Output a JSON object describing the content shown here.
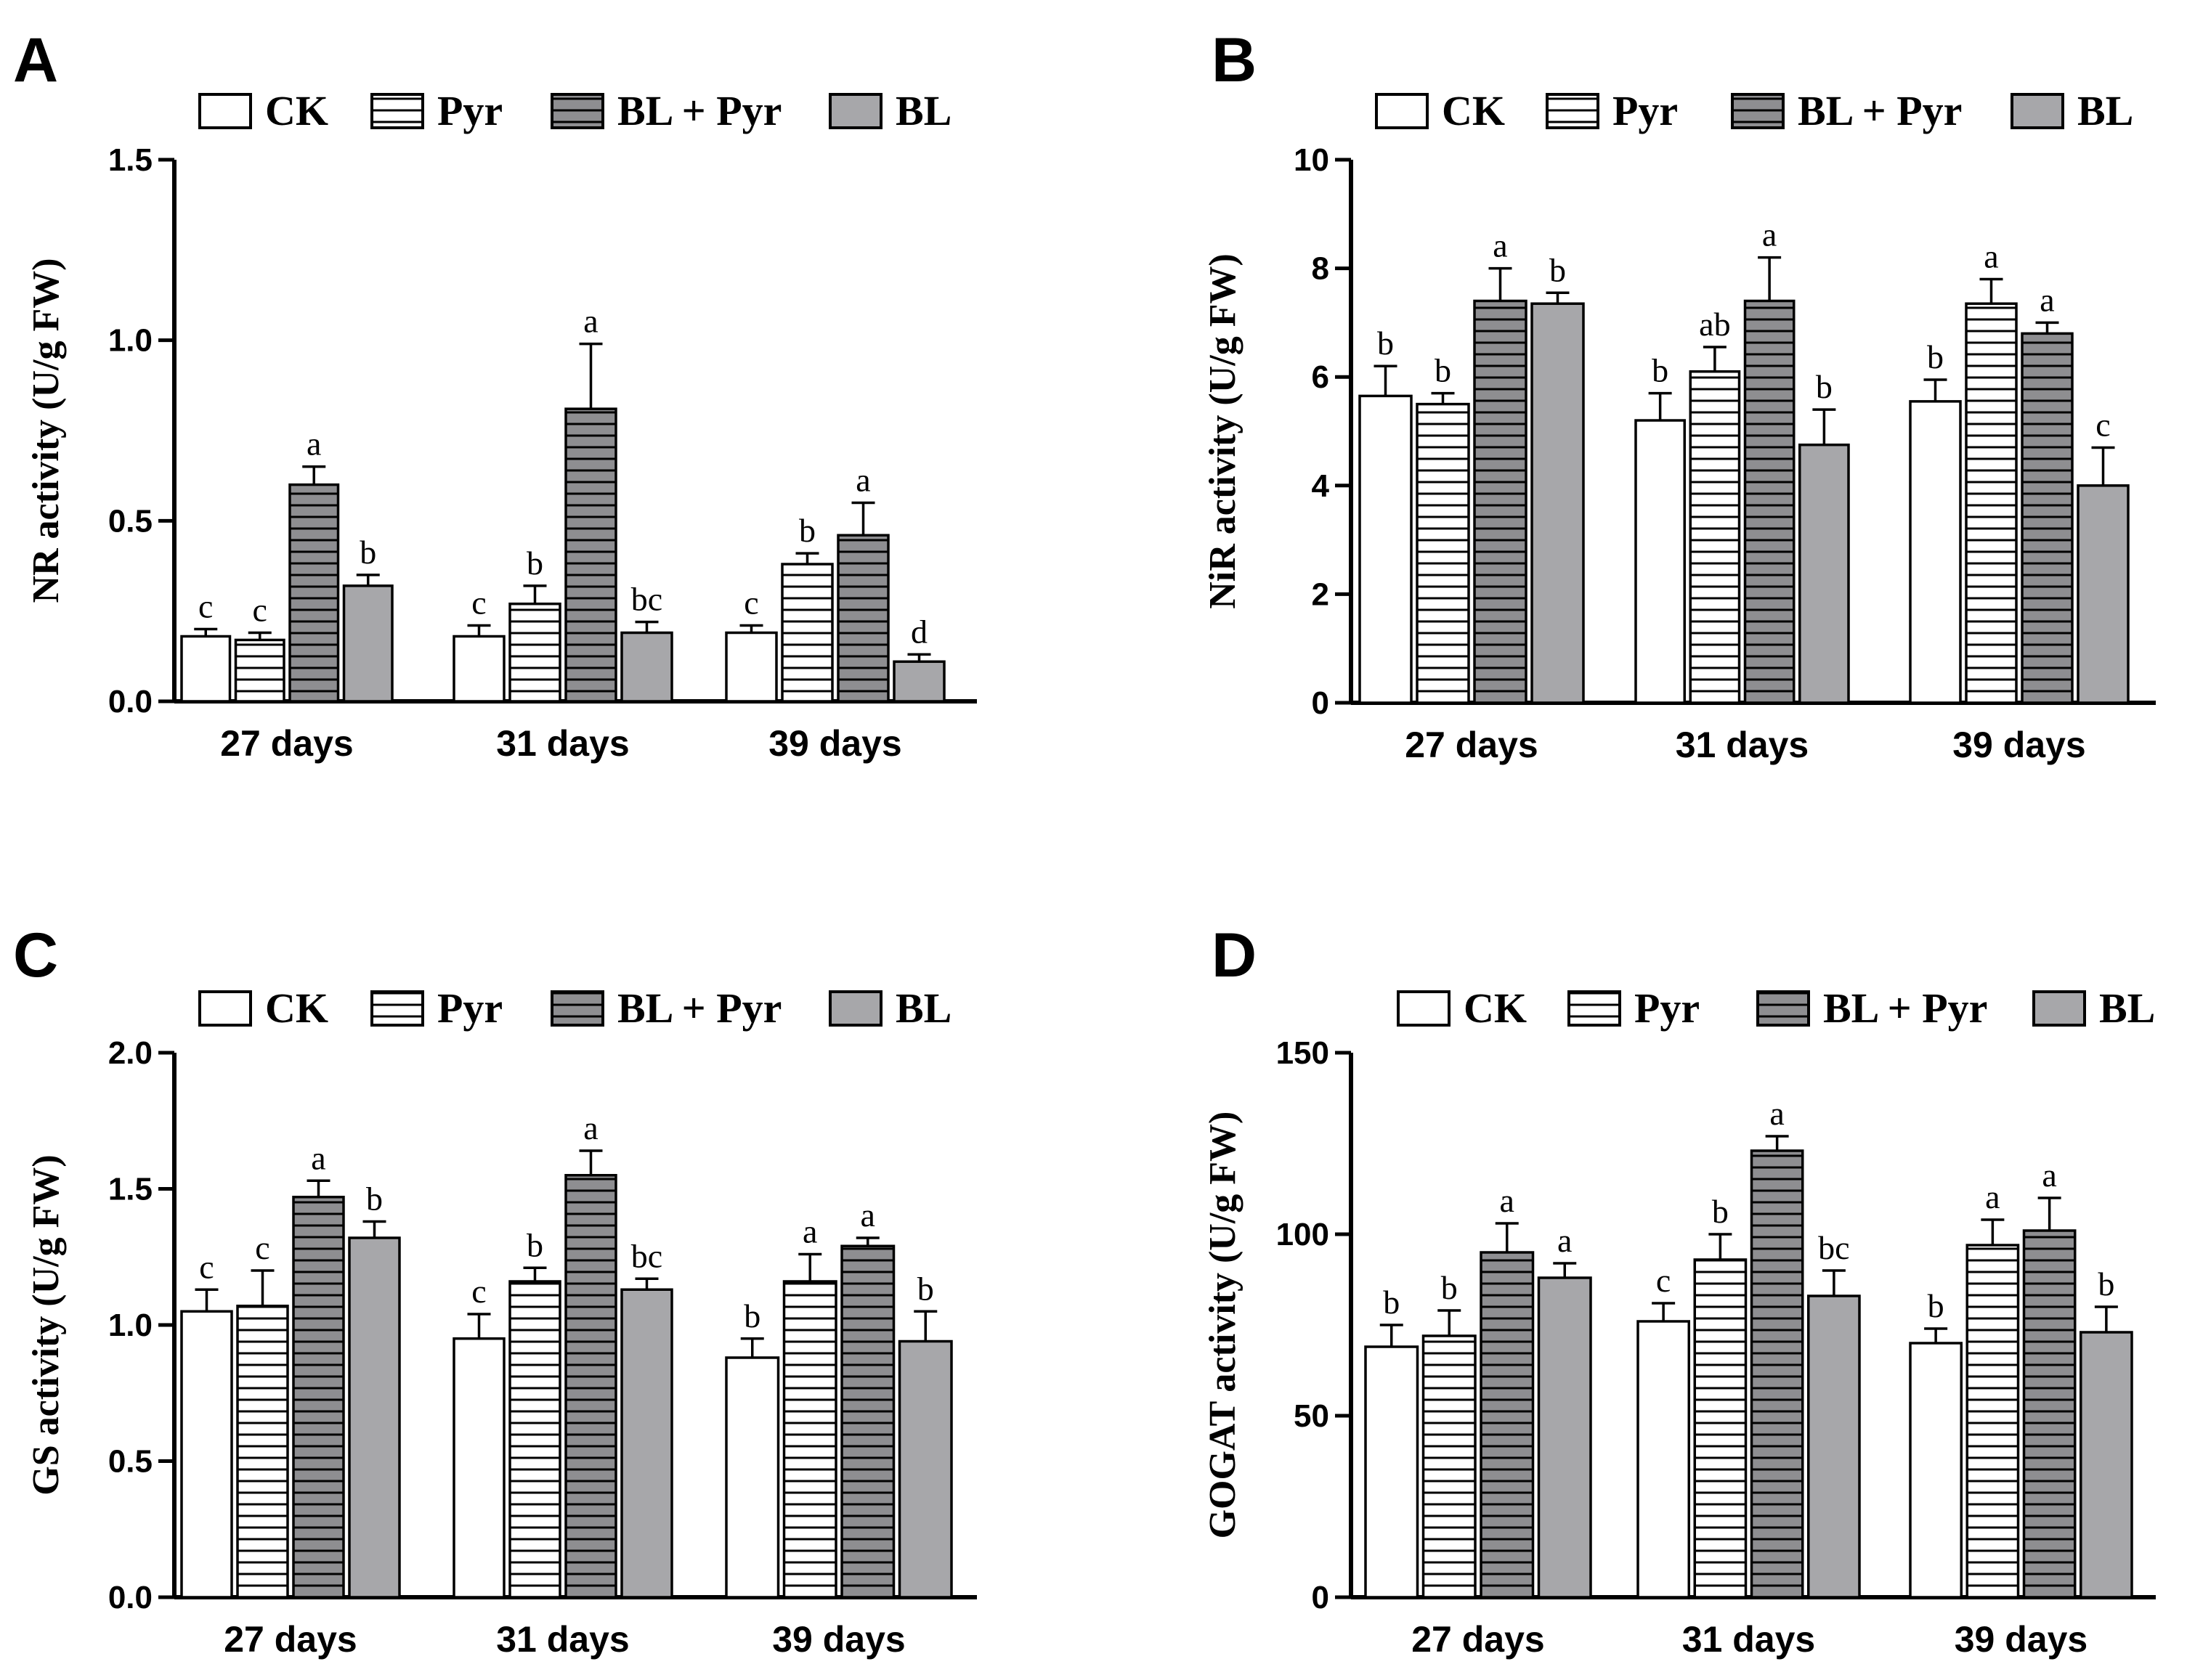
{
  "legend": [
    {
      "name": "CK",
      "pattern": "white"
    },
    {
      "name": "Pyr",
      "pattern": "hatch-white"
    },
    {
      "name": "BL + Pyr",
      "pattern": "hatch-gray"
    },
    {
      "name": "BL",
      "pattern": "gray"
    }
  ],
  "colors": {
    "gray_fill": "#a7a7aa",
    "hatch_gray_fill": "#8e8e91",
    "white_fill": "#ffffff",
    "stroke": "#000000"
  },
  "chart_data": [
    {
      "panel": "A",
      "type": "bar",
      "ylabel": "NR activity (U/g FW)",
      "ylim": [
        0,
        1.5
      ],
      "yticks": [
        "0.0",
        "0.5",
        "1.0",
        "1.5"
      ],
      "categories": [
        "27 days",
        "31 days",
        "39 days"
      ],
      "series": [
        {
          "name": "CK",
          "values": [
            0.18,
            0.18,
            0.19
          ],
          "errors": [
            0.02,
            0.03,
            0.02
          ],
          "letters": [
            "c",
            "c",
            "c"
          ]
        },
        {
          "name": "Pyr",
          "values": [
            0.17,
            0.27,
            0.38
          ],
          "errors": [
            0.02,
            0.05,
            0.03
          ],
          "letters": [
            "c",
            "b",
            "b"
          ]
        },
        {
          "name": "BL + Pyr",
          "values": [
            0.6,
            0.81,
            0.46
          ],
          "errors": [
            0.05,
            0.18,
            0.09
          ],
          "letters": [
            "a",
            "a",
            "a"
          ]
        },
        {
          "name": "BL",
          "values": [
            0.32,
            0.19,
            0.11
          ],
          "errors": [
            0.03,
            0.03,
            0.02
          ],
          "letters": [
            "b",
            "bc",
            "d"
          ]
        }
      ]
    },
    {
      "panel": "B",
      "type": "bar",
      "ylabel": "NiR activity (U/g FW)",
      "ylim": [
        0,
        10
      ],
      "yticks": [
        "0",
        "2",
        "4",
        "6",
        "8",
        "10"
      ],
      "categories": [
        "27 days",
        "31 days",
        "39 days"
      ],
      "series": [
        {
          "name": "CK",
          "values": [
            5.65,
            5.2,
            5.55
          ],
          "errors": [
            0.55,
            0.5,
            0.4
          ],
          "letters": [
            "b",
            "b",
            "b"
          ]
        },
        {
          "name": "Pyr",
          "values": [
            5.5,
            6.1,
            7.35
          ],
          "errors": [
            0.2,
            0.45,
            0.45
          ],
          "letters": [
            "b",
            "ab",
            "a"
          ]
        },
        {
          "name": "BL + Pyr",
          "values": [
            7.4,
            7.4,
            6.8
          ],
          "errors": [
            0.6,
            0.8,
            0.2
          ],
          "letters": [
            "a",
            "a",
            "a"
          ]
        },
        {
          "name": "BL",
          "values": [
            7.35,
            4.75,
            4.0
          ],
          "errors": [
            0.2,
            0.65,
            0.7
          ],
          "letters": [
            "b",
            "b",
            "c"
          ]
        }
      ]
    },
    {
      "panel": "C",
      "type": "bar",
      "ylabel": "GS activity (U/g FW)",
      "ylim": [
        0,
        2.0
      ],
      "yticks": [
        "0.0",
        "0.5",
        "1.0",
        "1.5",
        "2.0"
      ],
      "categories": [
        "27 days",
        "31 days",
        "39 days"
      ],
      "series": [
        {
          "name": "CK",
          "values": [
            1.05,
            0.95,
            0.88
          ],
          "errors": [
            0.08,
            0.09,
            0.07
          ],
          "letters": [
            "c",
            "c",
            "b"
          ]
        },
        {
          "name": "Pyr",
          "values": [
            1.07,
            1.16,
            1.16
          ],
          "errors": [
            0.13,
            0.05,
            0.1
          ],
          "letters": [
            "c",
            "b",
            "a"
          ]
        },
        {
          "name": "BL + Pyr",
          "values": [
            1.47,
            1.55,
            1.29
          ],
          "errors": [
            0.06,
            0.09,
            0.03
          ],
          "letters": [
            "a",
            "a",
            "a"
          ]
        },
        {
          "name": "BL",
          "values": [
            1.32,
            1.13,
            0.94
          ],
          "errors": [
            0.06,
            0.04,
            0.11
          ],
          "letters": [
            "b",
            "bc",
            "b"
          ]
        }
      ]
    },
    {
      "panel": "D",
      "type": "bar",
      "ylabel": "GOGAT activity (U/g FW)",
      "ylim": [
        0,
        150
      ],
      "yticks": [
        "0",
        "50",
        "100",
        "150"
      ],
      "categories": [
        "27 days",
        "31 days",
        "39 days"
      ],
      "series": [
        {
          "name": "CK",
          "values": [
            69,
            76,
            70
          ],
          "errors": [
            6,
            5,
            4
          ],
          "letters": [
            "b",
            "c",
            "b"
          ]
        },
        {
          "name": "Pyr",
          "values": [
            72,
            93,
            97
          ],
          "errors": [
            7,
            7,
            7
          ],
          "letters": [
            "b",
            "b",
            "a"
          ]
        },
        {
          "name": "BL + Pyr",
          "values": [
            95,
            123,
            101
          ],
          "errors": [
            8,
            4,
            9
          ],
          "letters": [
            "a",
            "a",
            "a"
          ]
        },
        {
          "name": "BL",
          "values": [
            88,
            83,
            73
          ],
          "errors": [
            4,
            7,
            7
          ],
          "letters": [
            "a",
            "bc",
            "b"
          ]
        }
      ]
    }
  ]
}
